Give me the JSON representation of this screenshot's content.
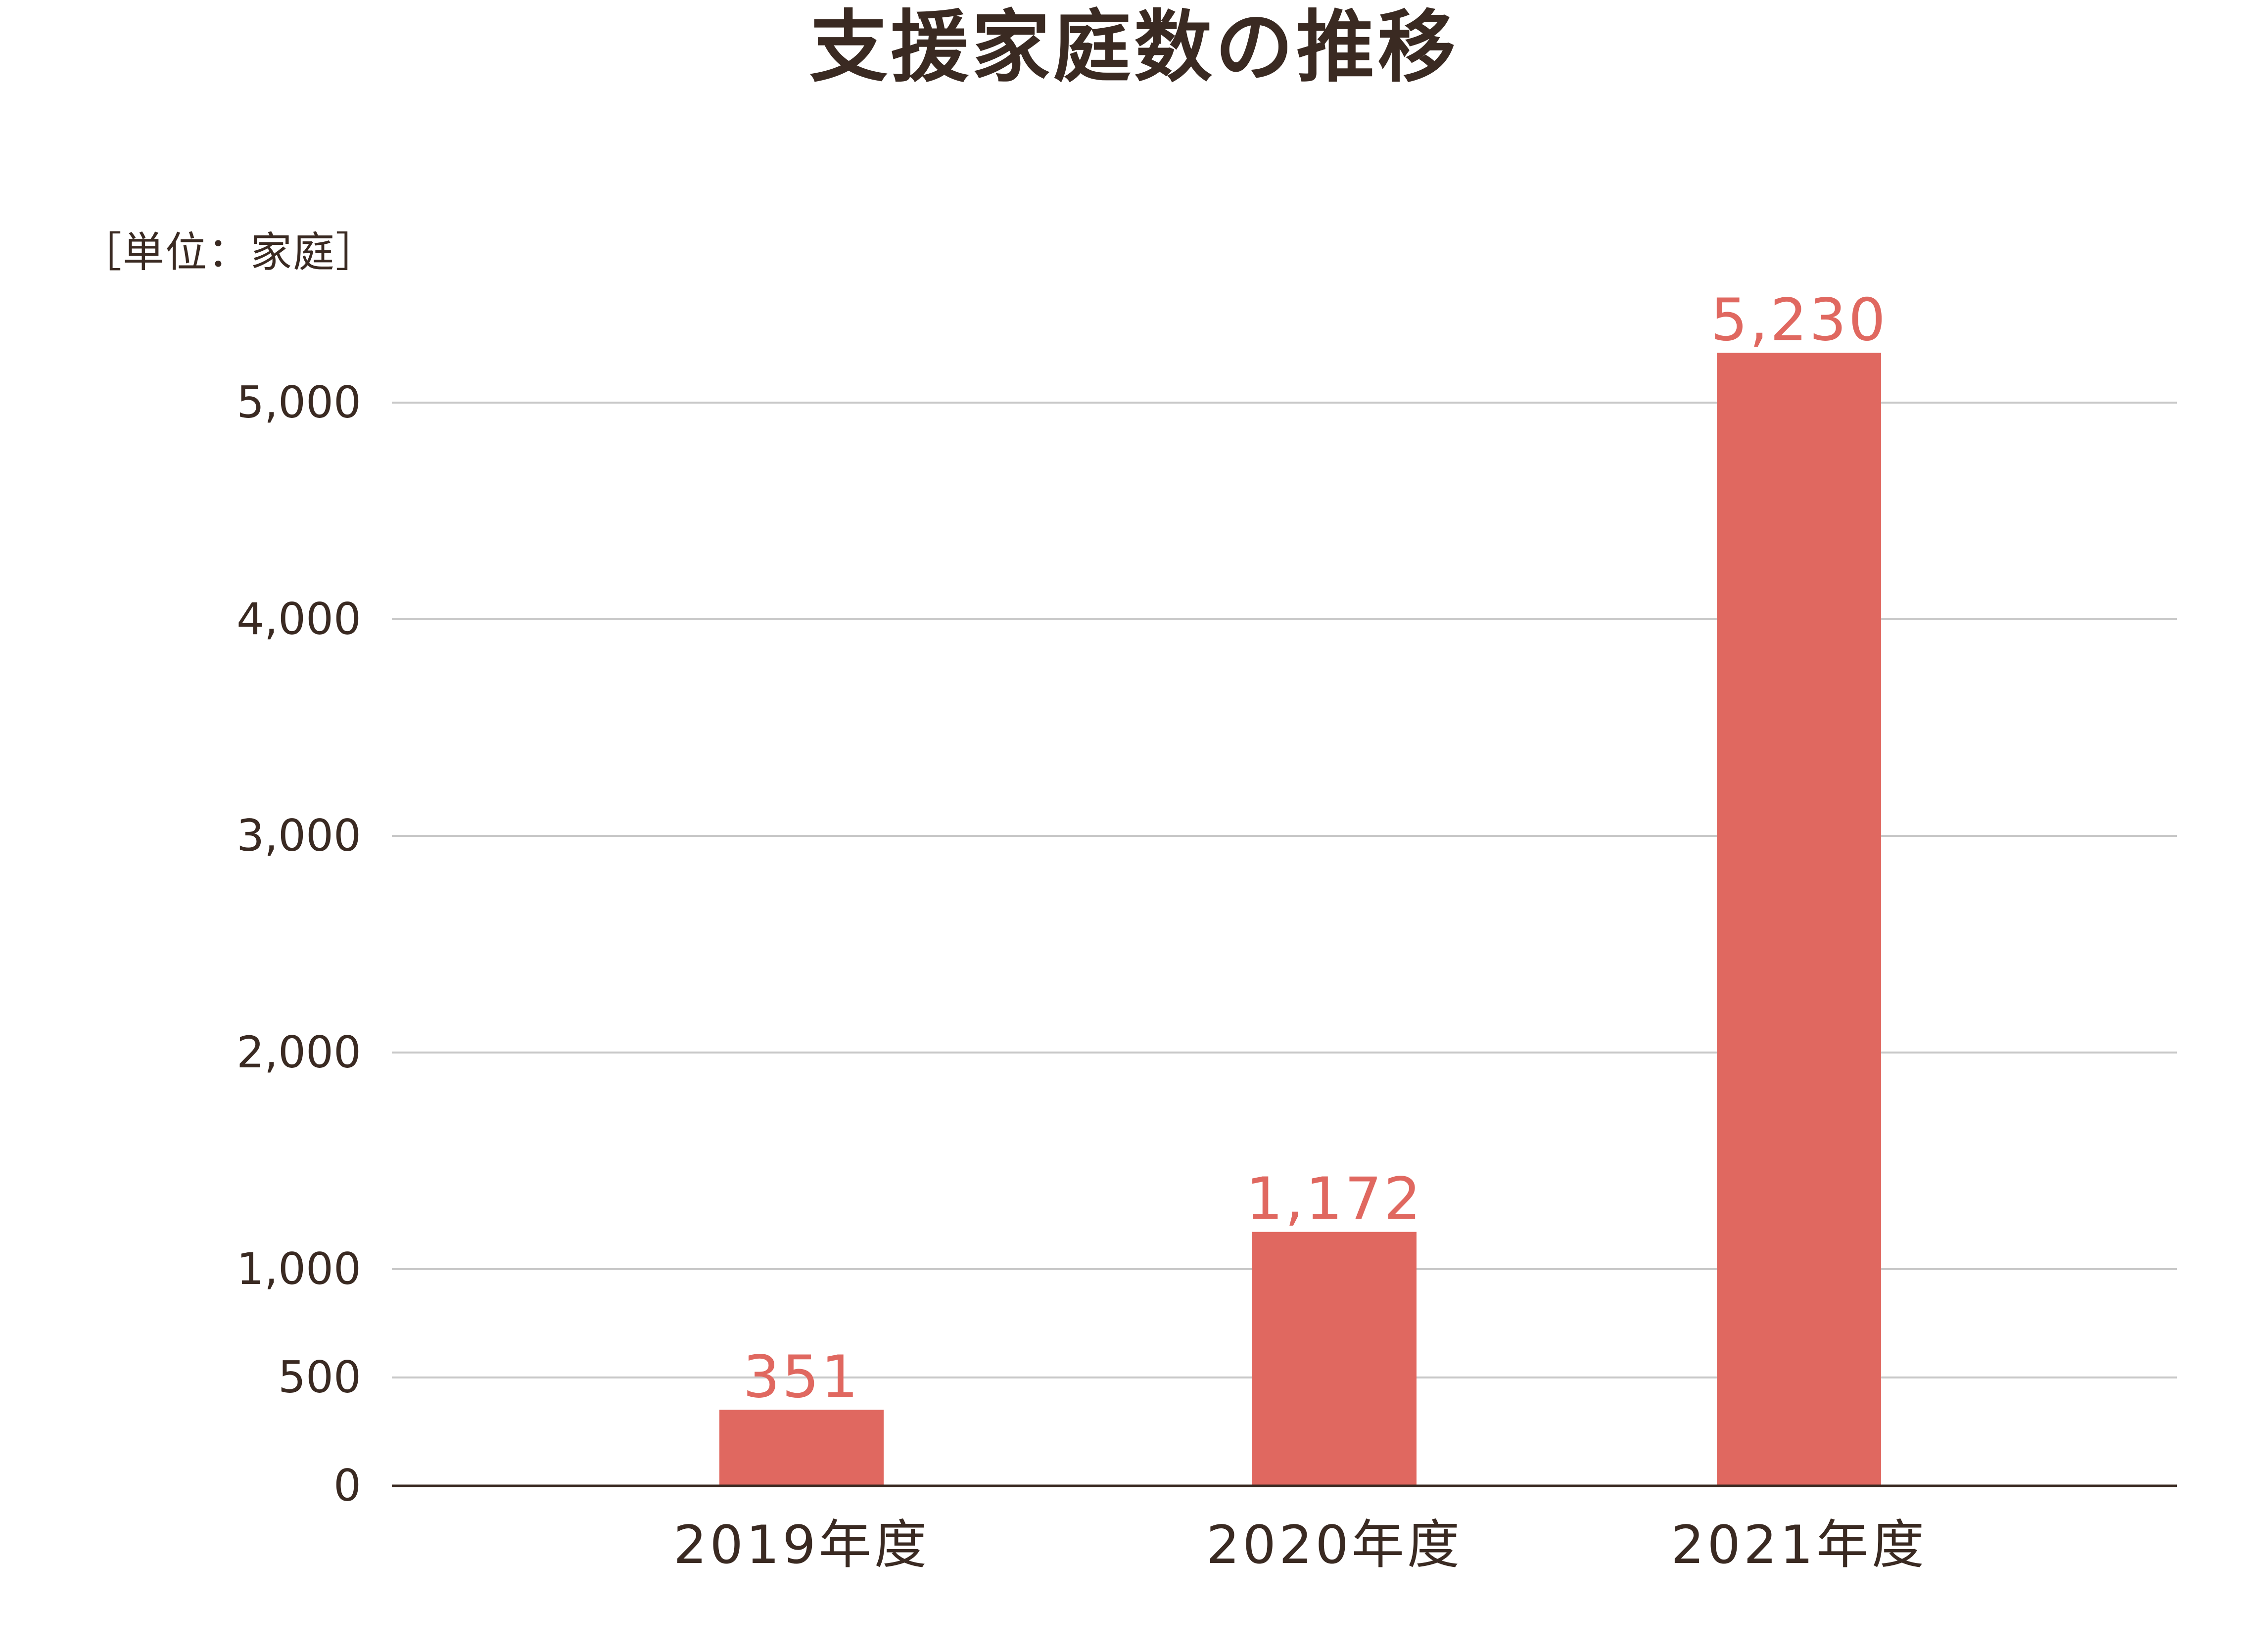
{
  "chart_data": {
    "type": "bar",
    "title": "支援家庭数の推移",
    "unit_label": "［単位：家庭］",
    "categories": [
      "2019年度",
      "2020年度",
      "2021年度"
    ],
    "series": [
      {
        "values": [
          351,
          1172,
          5230
        ]
      }
    ],
    "value_labels": [
      "351",
      "1,172",
      "5,230"
    ],
    "y_ticks": [
      0,
      500,
      1000,
      2000,
      3000,
      4000,
      5000
    ],
    "y_tick_labels": [
      "0",
      "500",
      "1,000",
      "2,000",
      "3,000",
      "4,000",
      "5,000"
    ],
    "ylim": [
      0,
      5230
    ],
    "grid": true,
    "bar_color": "#e06860",
    "value_label_color": "#e06860",
    "text_color": "#3a2a22",
    "grid_color": "#c8c8c8",
    "axis_color": "#3a2a22"
  }
}
